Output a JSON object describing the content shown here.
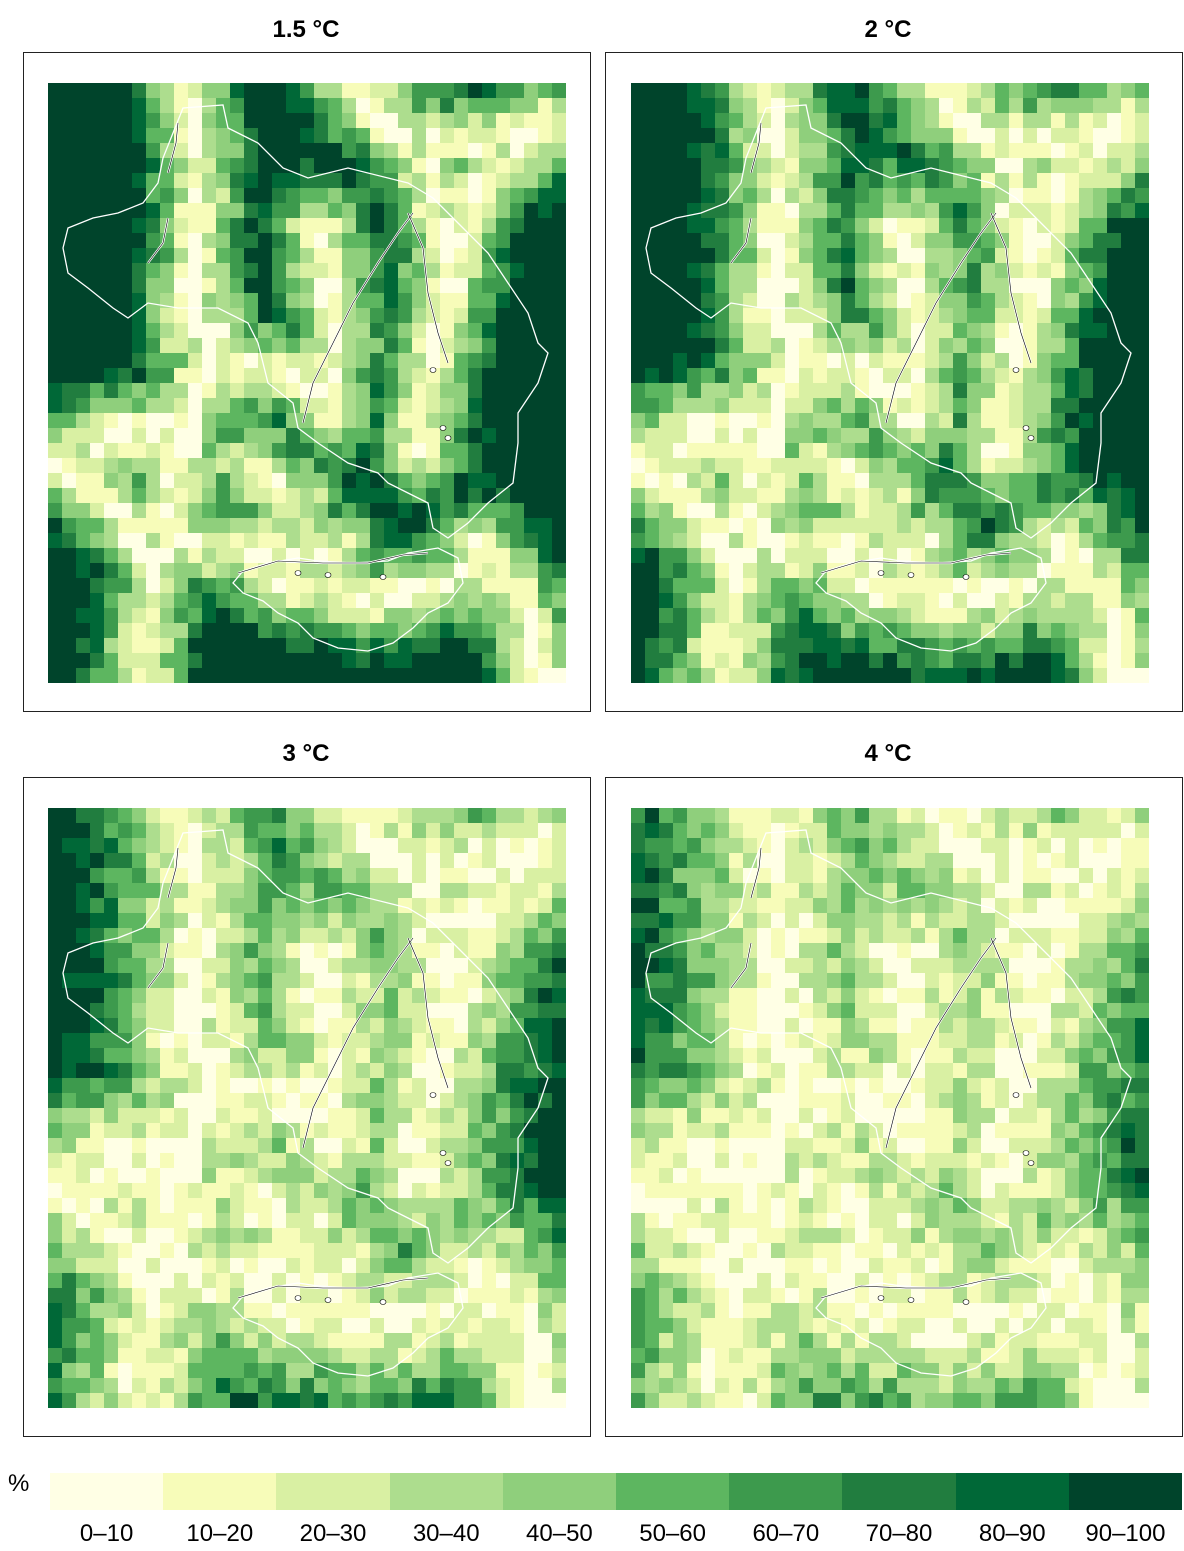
{
  "panels": [
    {
      "title": "1.5 °C",
      "warming": 1.5
    },
    {
      "title": "2 °C",
      "warming": 2
    },
    {
      "title": "3 °C",
      "warming": 3
    },
    {
      "title": "4 °C",
      "warming": 4
    }
  ],
  "legend": {
    "unit": "%",
    "classes": [
      {
        "label": "0–10",
        "color": "#ffffe5"
      },
      {
        "label": "10–20",
        "color": "#f7fcb9"
      },
      {
        "label": "20–30",
        "color": "#d9f0a3"
      },
      {
        "label": "30–40",
        "color": "#addd8e"
      },
      {
        "label": "40–50",
        "color": "#8fcf7c"
      },
      {
        "label": "50–60",
        "color": "#5db660"
      },
      {
        "label": "60–70",
        "color": "#3d9a4d"
      },
      {
        "label": "70–80",
        "color": "#217d3f"
      },
      {
        "label": "80–90",
        "color": "#006837"
      },
      {
        "label": "90–100",
        "color": "#00442b"
      }
    ]
  },
  "colors": {
    "boundary": "#ffffff",
    "lake_outline": "#000000"
  }
}
